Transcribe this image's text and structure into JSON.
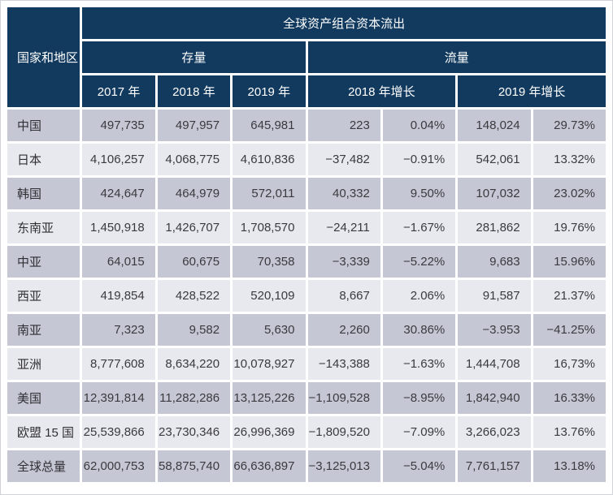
{
  "colors": {
    "header_bg": "#123a5f",
    "row_dark": "#c6c7d5",
    "row_light": "#e8e8ef",
    "page_border": "#cfd3d8"
  },
  "table": {
    "header": {
      "corner_label": "国家和地区",
      "title": "全球资产组合资本流出",
      "group_stock": "存量",
      "group_flow": "流量",
      "col_2017": "2017 年",
      "col_2018": "2018 年",
      "col_2019": "2019 年",
      "col_growth_2018": "2018 年增长",
      "col_growth_2019": "2019 年增长"
    },
    "rows": [
      {
        "label": "中国",
        "values": [
          "497,735",
          "497,957",
          "645,981",
          "223",
          "0.04%",
          "148,024",
          "29.73%"
        ]
      },
      {
        "label": "日本",
        "values": [
          "4,106,257",
          "4,068,775",
          "4,610,836",
          "−37,482",
          "−0.91%",
          "542,061",
          "13.32%"
        ]
      },
      {
        "label": "韩国",
        "values": [
          "424,647",
          "464,979",
          "572,011",
          "40,332",
          "9.50%",
          "107,032",
          "23.02%"
        ]
      },
      {
        "label": "东南亚",
        "values": [
          "1,450,918",
          "1,426,707",
          "1,708,570",
          "−24,211",
          "−1.67%",
          "281,862",
          "19.76%"
        ]
      },
      {
        "label": "中亚",
        "values": [
          "64,015",
          "60,675",
          "70,358",
          "−3,339",
          "−5.22%",
          "9,683",
          "15.96%"
        ]
      },
      {
        "label": "西亚",
        "values": [
          "419,854",
          "428,522",
          "520,109",
          "8,667",
          "2.06%",
          "91,587",
          "21.37%"
        ]
      },
      {
        "label": "南亚",
        "values": [
          "7,323",
          "9,582",
          "5,630",
          "2,260",
          "30.86%",
          "−3.953",
          "−41.25%"
        ]
      },
      {
        "label": "亚洲",
        "values": [
          "8,777,608",
          "8,634,220",
          "10,078,927",
          "−143,388",
          "−1.63%",
          "1,444,708",
          "16,73%"
        ]
      },
      {
        "label": "美国",
        "values": [
          "12,391,814",
          "11,282,286",
          "13,125,226",
          "−1,109,528",
          "−8.95%",
          "1,842,940",
          "16.33%"
        ]
      },
      {
        "label": "欧盟 15 国",
        "values": [
          "25,539,866",
          "23,730,346",
          "26,996,369",
          "−1,809,520",
          "−7.09%",
          "3,266,023",
          "13.76%"
        ]
      },
      {
        "label": "全球总量",
        "values": [
          "62,000,753",
          "58,875,740",
          "66,636,897",
          "−3,125,013",
          "−5.04%",
          "7,761,157",
          "13.18%"
        ]
      }
    ]
  }
}
